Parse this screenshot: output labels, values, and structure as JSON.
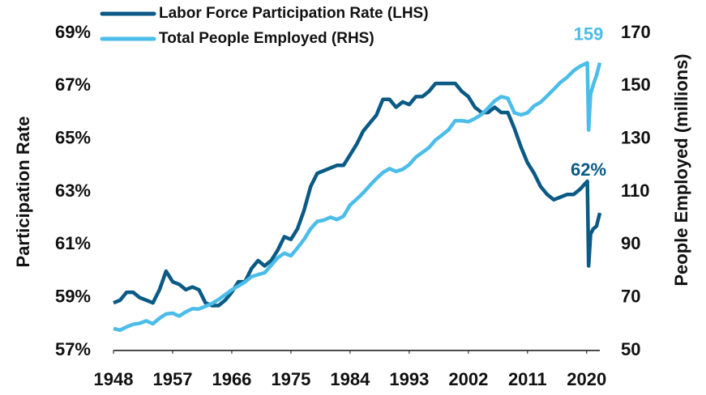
{
  "chart_data": {
    "type": "line",
    "ylabel": "Participation Rate",
    "y2label": "People Employed (millions)",
    "x": [
      1948,
      1949,
      1950,
      1951,
      1952,
      1953,
      1954,
      1955,
      1956,
      1957,
      1958,
      1959,
      1960,
      1961,
      1962,
      1963,
      1964,
      1965,
      1966,
      1967,
      1968,
      1969,
      1970,
      1971,
      1972,
      1973,
      1974,
      1975,
      1976,
      1977,
      1978,
      1979,
      1980,
      1981,
      1982,
      1983,
      1984,
      1985,
      1986,
      1987,
      1988,
      1989,
      1990,
      1991,
      1992,
      1993,
      1994,
      1995,
      1996,
      1997,
      1998,
      1999,
      2000,
      2001,
      2002,
      2003,
      2004,
      2005,
      2006,
      2007,
      2008,
      2009,
      2010,
      2011,
      2012,
      2013,
      2014,
      2015,
      2016,
      2017,
      2018,
      2019,
      2020.1,
      2020.3,
      2020.6,
      2021,
      2021.5,
      2022
    ],
    "series": [
      {
        "name": "Labor Force Participation Rate (LHS)",
        "color": "#0b5a85",
        "end_label": "62%",
        "values": [
          58.8,
          58.9,
          59.2,
          59.2,
          59.0,
          58.9,
          58.8,
          59.3,
          60.0,
          59.6,
          59.5,
          59.3,
          59.4,
          59.3,
          58.8,
          58.7,
          58.7,
          58.9,
          59.2,
          59.6,
          59.6,
          60.1,
          60.4,
          60.2,
          60.4,
          60.8,
          61.3,
          61.2,
          61.6,
          62.3,
          63.2,
          63.7,
          63.8,
          63.9,
          64.0,
          64.0,
          64.4,
          64.8,
          65.3,
          65.6,
          65.9,
          66.5,
          66.5,
          66.2,
          66.4,
          66.3,
          66.6,
          66.6,
          66.8,
          67.1,
          67.1,
          67.1,
          67.1,
          66.8,
          66.6,
          66.2,
          66.0,
          66.0,
          66.2,
          66.0,
          66.0,
          65.4,
          64.7,
          64.1,
          63.7,
          63.2,
          62.9,
          62.7,
          62.8,
          62.9,
          62.9,
          63.1,
          63.4,
          60.2,
          61.4,
          61.6,
          61.7,
          62.2
        ]
      },
      {
        "name": "Total People Employed (RHS)",
        "color": "#4bbde8",
        "axis": "y2",
        "end_label": "159",
        "values": [
          58.3,
          57.7,
          58.9,
          59.9,
          60.3,
          61.2,
          60.1,
          62.2,
          63.8,
          64.1,
          63.0,
          64.6,
          65.8,
          65.7,
          66.7,
          67.8,
          69.3,
          71.1,
          72.9,
          74.4,
          75.9,
          77.9,
          78.7,
          79.4,
          82.2,
          85.1,
          86.8,
          85.8,
          88.8,
          92.0,
          96.0,
          98.8,
          99.3,
          100.4,
          99.5,
          100.8,
          105.0,
          107.2,
          109.6,
          112.4,
          115.0,
          117.3,
          118.8,
          117.7,
          118.5,
          120.3,
          123.1,
          124.9,
          126.7,
          129.6,
          131.5,
          133.5,
          136.9,
          136.9,
          136.5,
          137.7,
          139.3,
          141.7,
          144.4,
          146.0,
          145.4,
          139.9,
          139.1,
          139.9,
          142.5,
          143.9,
          146.3,
          148.8,
          151.4,
          153.3,
          155.8,
          157.5,
          158.8,
          133.4,
          147.0,
          150.5,
          154.0,
          158.8
        ]
      }
    ],
    "xlim": [
      1948,
      2022
    ],
    "xticks": [
      1948,
      1957,
      1966,
      1975,
      1984,
      1993,
      2002,
      2011,
      2020
    ],
    "ylim": [
      57,
      69
    ],
    "yticks": [
      {
        "value": 57,
        "label": "57%"
      },
      {
        "value": 59,
        "label": "59%"
      },
      {
        "value": 61,
        "label": "61%"
      },
      {
        "value": 63,
        "label": "63%"
      },
      {
        "value": 65,
        "label": "65%"
      },
      {
        "value": 67,
        "label": "67%"
      },
      {
        "value": 69,
        "label": "69%"
      }
    ],
    "y2lim": [
      50,
      170
    ],
    "y2ticks": [
      50,
      70,
      90,
      110,
      130,
      150,
      170
    ],
    "legend": "top-left"
  }
}
